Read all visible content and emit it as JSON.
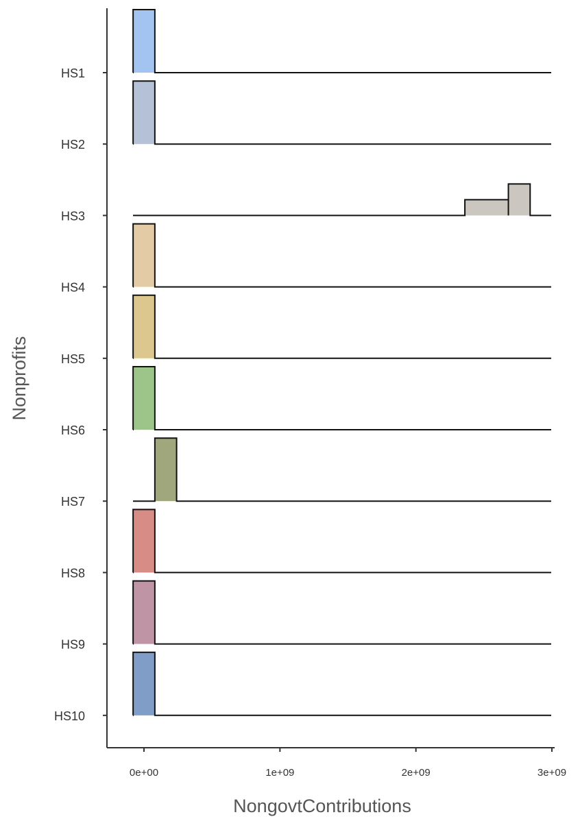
{
  "chart_data": {
    "type": "ridgeline",
    "xlabel": "NongovtContributions",
    "ylabel": "Nonprofits",
    "xlim": [
      -280000000,
      3020000000
    ],
    "x_ticks": [
      {
        "value": 0,
        "label": "0e+00"
      },
      {
        "value": 1000000000,
        "label": "1e+09"
      },
      {
        "value": 2000000000,
        "label": "2e+09"
      },
      {
        "value": 3000000000,
        "label": "3e+09"
      }
    ],
    "grid": false,
    "legend": "none",
    "series": [
      {
        "name": "HS1",
        "color": "#a3c4f0",
        "steps": [
          {
            "x0": -80000000,
            "x1": 80000000,
            "h": 1.0
          }
        ]
      },
      {
        "name": "HS2",
        "color": "#b5c1d6",
        "steps": [
          {
            "x0": -80000000,
            "x1": 80000000,
            "h": 1.0
          }
        ]
      },
      {
        "name": "HS3",
        "color": "#cbc7c0",
        "steps": [
          {
            "x0": 2360000000,
            "x1": 2680000000,
            "h": 0.25
          },
          {
            "x0": 2680000000,
            "x1": 2840000000,
            "h": 0.5
          }
        ]
      },
      {
        "name": "HS4",
        "color": "#e3cba6",
        "steps": [
          {
            "x0": -80000000,
            "x1": 80000000,
            "h": 1.0
          }
        ]
      },
      {
        "name": "HS5",
        "color": "#dcc88e",
        "steps": [
          {
            "x0": -80000000,
            "x1": 80000000,
            "h": 1.0
          }
        ]
      },
      {
        "name": "HS6",
        "color": "#9dc58a",
        "steps": [
          {
            "x0": -80000000,
            "x1": 80000000,
            "h": 1.0
          }
        ]
      },
      {
        "name": "HS7",
        "color": "#a0a77d",
        "steps": [
          {
            "x0": 80000000,
            "x1": 240000000,
            "h": 1.0
          }
        ]
      },
      {
        "name": "HS8",
        "color": "#d88c86",
        "steps": [
          {
            "x0": -80000000,
            "x1": 80000000,
            "h": 1.0
          }
        ]
      },
      {
        "name": "HS9",
        "color": "#bf94a4",
        "steps": [
          {
            "x0": -80000000,
            "x1": 80000000,
            "h": 1.0
          }
        ]
      },
      {
        "name": "HS10",
        "color": "#7f9dc7",
        "steps": [
          {
            "x0": -80000000,
            "x1": 80000000,
            "h": 1.0
          }
        ]
      }
    ]
  }
}
